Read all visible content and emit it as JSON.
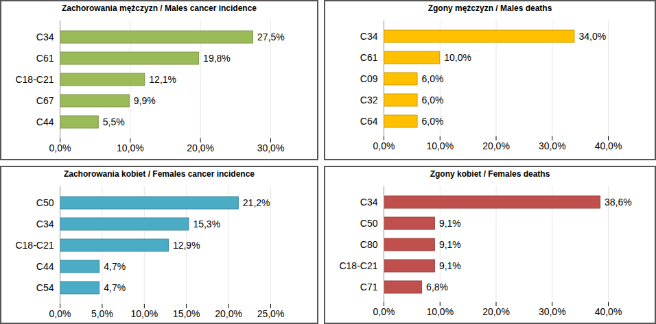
{
  "chart_data": [
    {
      "type": "bar",
      "title": "Zachorowania mężczyzn / Males cancer incidence",
      "orientation": "horizontal",
      "data_labels": true,
      "grid": true,
      "color": "#9bbb59",
      "categories": [
        "C34",
        "C61",
        "C18-C21",
        "C67",
        "C44"
      ],
      "values": [
        27.5,
        19.8,
        12.1,
        9.9,
        5.5
      ],
      "value_labels": [
        "27,5%",
        "19,8%",
        "12,1%",
        "9,9%",
        "5,5%"
      ],
      "xlim": [
        0,
        30
      ],
      "xticks": [
        {
          "value": 0,
          "label": "0,0%"
        },
        {
          "value": 10,
          "label": "10,0%"
        },
        {
          "value": 20,
          "label": "20,0%"
        },
        {
          "value": 30,
          "label": "30,0%"
        }
      ]
    },
    {
      "type": "bar",
      "title": "Zgony mężczyzn / Males deaths",
      "orientation": "horizontal",
      "data_labels": true,
      "grid": true,
      "color": "#ffc000",
      "categories": [
        "C34",
        "C61",
        "C09",
        "C32",
        "C64"
      ],
      "values": [
        34.0,
        10.0,
        6.0,
        6.0,
        6.0
      ],
      "value_labels": [
        "34,0%",
        "10,0%",
        "6,0%",
        "6,0%",
        "6,0%"
      ],
      "xlim": [
        0,
        40
      ],
      "xticks": [
        {
          "value": 0,
          "label": "0,0%"
        },
        {
          "value": 10,
          "label": "10,0%"
        },
        {
          "value": 20,
          "label": "20,0%"
        },
        {
          "value": 30,
          "label": "30,0%"
        },
        {
          "value": 40,
          "label": "40,0%"
        }
      ]
    },
    {
      "type": "bar",
      "title": "Zachorowania kobiet / Females cancer incidence",
      "orientation": "horizontal",
      "data_labels": true,
      "grid": true,
      "color": "#4bacc6",
      "categories": [
        "C50",
        "C34",
        "C18-C21",
        "C44",
        "C54"
      ],
      "values": [
        21.2,
        15.3,
        12.9,
        4.7,
        4.7
      ],
      "value_labels": [
        "21,2%",
        "15,3%",
        "12,9%",
        "4,7%",
        "4,7%"
      ],
      "xlim": [
        0,
        25
      ],
      "xticks": [
        {
          "value": 0,
          "label": "0,0%"
        },
        {
          "value": 5,
          "label": "5,0%"
        },
        {
          "value": 10,
          "label": "10,0%"
        },
        {
          "value": 15,
          "label": "15,0%"
        },
        {
          "value": 20,
          "label": "20,0%"
        },
        {
          "value": 25,
          "label": "25,0%"
        }
      ]
    },
    {
      "type": "bar",
      "title": "Zgony kobiet / Females deaths",
      "orientation": "horizontal",
      "data_labels": true,
      "grid": true,
      "color": "#c0504d",
      "categories": [
        "C34",
        "C50",
        "C80",
        "C18-C21",
        "C71"
      ],
      "values": [
        38.6,
        9.1,
        9.1,
        9.1,
        6.8
      ],
      "value_labels": [
        "38,6%",
        "9,1%",
        "9,1%",
        "9,1%",
        "6,8%"
      ],
      "xlim": [
        0,
        40
      ],
      "xticks": [
        {
          "value": 0,
          "label": "0,0%"
        },
        {
          "value": 10,
          "label": "10,0%"
        },
        {
          "value": 20,
          "label": "20,0%"
        },
        {
          "value": 30,
          "label": "30,0%"
        },
        {
          "value": 40,
          "label": "40,0%"
        }
      ]
    }
  ]
}
